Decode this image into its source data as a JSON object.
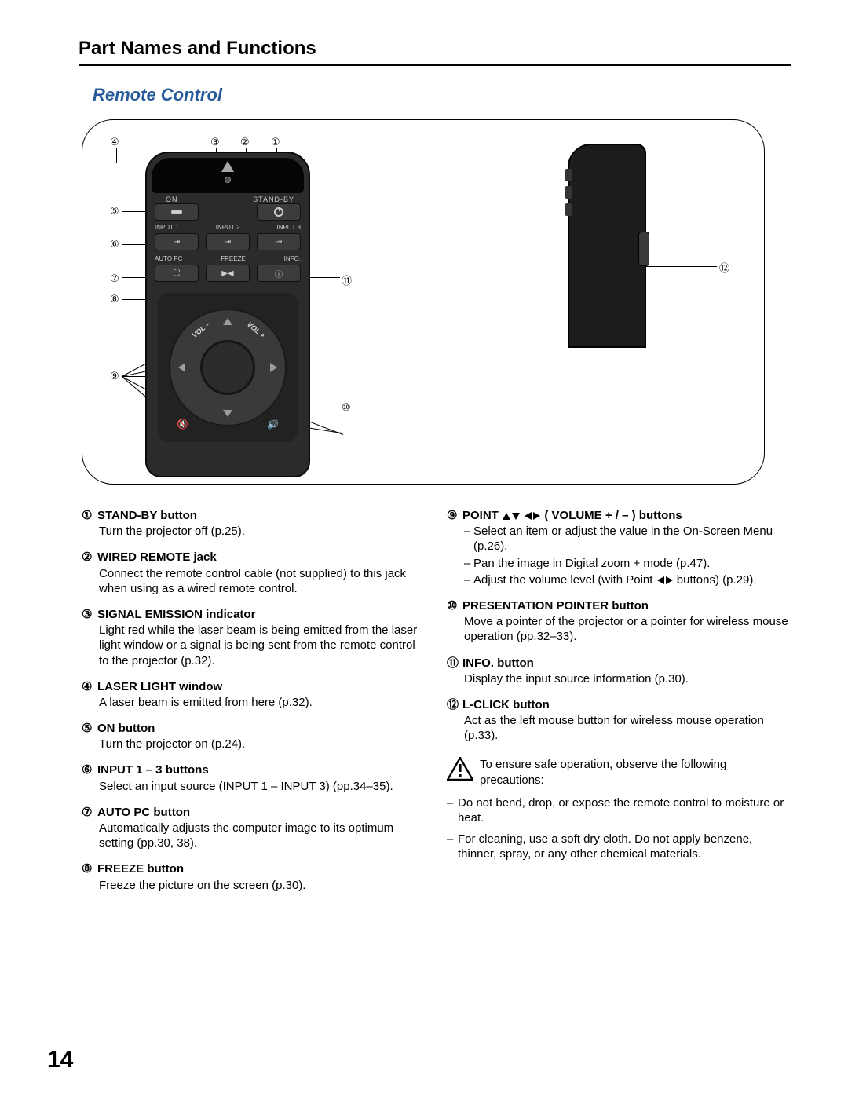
{
  "page_number": "14",
  "section_title": "Part Names and Functions",
  "subtitle": "Remote Control",
  "remote_labels": {
    "on": "ON",
    "standby": "STAND-BY",
    "input1": "INPUT 1",
    "input2": "INPUT 2",
    "input3": "INPUT 3",
    "autopc": "AUTO PC",
    "freeze": "FREEZE",
    "info": "INFO.",
    "vol_minus": "VOL –",
    "vol_plus": "VOL +"
  },
  "callouts": {
    "c1": "①",
    "c2": "②",
    "c3": "③",
    "c4": "④",
    "c5": "⑤",
    "c6": "⑥",
    "c7": "⑦",
    "c8": "⑧",
    "c9": "⑨",
    "c10": "⑩",
    "c11": "⑪",
    "c12": "⑫"
  },
  "items_left": [
    {
      "num": "①",
      "head": "STAND-BY button",
      "body": "Turn the projector off (p.25)."
    },
    {
      "num": "②",
      "head": "WIRED REMOTE jack",
      "body": "Connect the remote control cable (not supplied) to this jack when using as a wired remote control."
    },
    {
      "num": "③",
      "head": "SIGNAL EMISSION indicator",
      "body": "Light red while the laser beam is being emitted from the laser light window or a signal is being sent from the remote control to the projector (p.32)."
    },
    {
      "num": "④",
      "head": "LASER LIGHT window",
      "body": "A laser beam is emitted from here (p.32)."
    },
    {
      "num": "⑤",
      "head": "ON button",
      "body": "Turn the projector on (p.24)."
    },
    {
      "num": "⑥",
      "head": "INPUT 1 – 3 buttons",
      "body": "Select an input source (INPUT 1 – INPUT 3) (pp.34–35)."
    },
    {
      "num": "⑦",
      "head": "AUTO PC button",
      "body": "Automatically adjusts the computer image to its optimum setting (pp.30, 38)."
    },
    {
      "num": "⑧",
      "head": "FREEZE button",
      "body": "Freeze the picture on the screen (p.30)."
    }
  ],
  "item9": {
    "num": "⑨",
    "head_before": "POINT ",
    "head_after": " ( VOLUME + / – ) buttons",
    "subs": [
      "Select an item or adjust the value in the On-Screen Menu (p.26).",
      "Pan the image in Digital zoom + mode (p.47)."
    ],
    "sub3_before": "Adjust the volume level (with Point ",
    "sub3_after": " buttons) (p.29)."
  },
  "items_right_rest": [
    {
      "num": "⑩",
      "head": "PRESENTATION POINTER button",
      "body": "Move a pointer of the projector or a pointer for wireless mouse operation (pp.32–33)."
    },
    {
      "num": "⑪",
      "head": "INFO. button",
      "body": "Display the input source information (p.30)."
    },
    {
      "num": "⑫",
      "head": "L-CLICK button",
      "body": "Act as the left mouse button for wireless mouse operation (p.33)."
    }
  ],
  "warning_text": "To ensure safe operation, observe the following precautions:",
  "precautions": [
    "Do not bend, drop, or expose the remote control to moisture or heat.",
    "For cleaning, use a soft dry cloth. Do not apply benzene, thinner, spray, or any other chemical materials."
  ],
  "colors": {
    "accent": "#285a9a",
    "text": "#000000",
    "bg": "#ffffff"
  }
}
